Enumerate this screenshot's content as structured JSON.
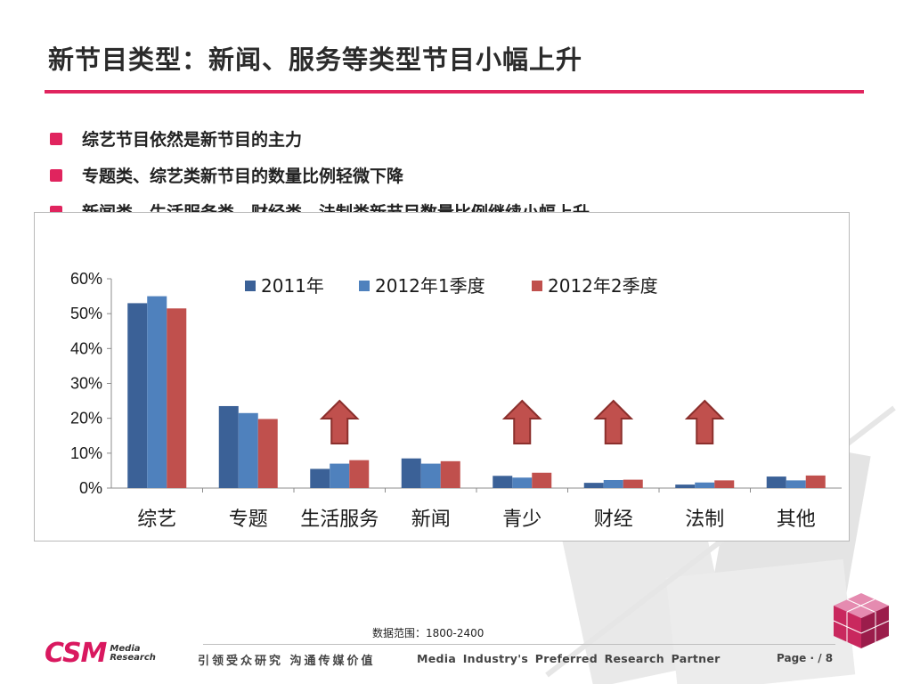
{
  "slide": {
    "title": "新节目类型：新闻、服务等类型节目小幅上升",
    "bullets": [
      "综艺节目依然是新节目的主力",
      "专题类、综艺类新节目的数量比例轻微下降",
      "新闻类、生活服务类、财经类、法制类新节目数量比例继续小幅上升"
    ],
    "accent_color": "#e0245e"
  },
  "chart_data": {
    "type": "bar",
    "categories": [
      "综艺",
      "专题",
      "生活服务",
      "新闻",
      "青少",
      "财经",
      "法制",
      "其他"
    ],
    "series": [
      {
        "name": "2011年",
        "color": "#3b6197",
        "values": [
          53,
          23.5,
          5.5,
          8.5,
          3.5,
          1.5,
          1,
          3.3
        ]
      },
      {
        "name": "2012年1季度",
        "color": "#4f81bd",
        "values": [
          55,
          21.5,
          7,
          7,
          3,
          2.3,
          1.6,
          2.2
        ]
      },
      {
        "name": "2012年2季度",
        "color": "#c0504d",
        "values": [
          51.5,
          19.8,
          8,
          7.7,
          4.4,
          2.4,
          2.2,
          3.6
        ]
      }
    ],
    "yticks": [
      "0%",
      "10%",
      "20%",
      "30%",
      "40%",
      "50%",
      "60%"
    ],
    "ylim": [
      0,
      60
    ],
    "legend_position": "top",
    "grid": false,
    "up_arrow_categories": [
      "生活服务",
      "青少",
      "财经",
      "法制"
    ],
    "arrow_color": "#c0504d"
  },
  "footer": {
    "data_range": "数据范围：1800-2400",
    "logo_text": "CSM",
    "logo_sub_1": "Media",
    "logo_sub_2": "Research",
    "slogan_cn": "引领受众研究 沟通传媒价值",
    "slogan_en": "Media Industry's Preferred Research Partner",
    "page_label": "Page · / 8"
  }
}
